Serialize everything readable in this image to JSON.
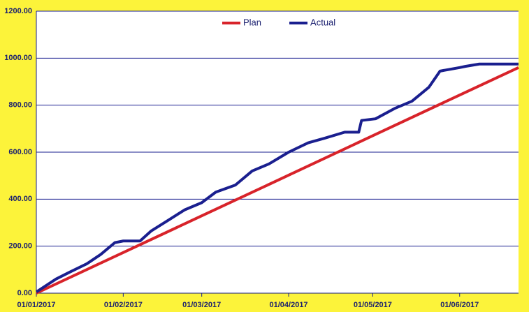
{
  "chart_data": {
    "type": "line",
    "x_format": "dd/mm/yyyy",
    "xlim": [
      "01/01/2017",
      "22/06/2017"
    ],
    "xticks": [
      "01/01/2017",
      "01/02/2017",
      "01/03/2017",
      "01/04/2017",
      "01/05/2017",
      "01/06/2017"
    ],
    "ylim": [
      0,
      1200
    ],
    "yticks": [
      {
        "value": 0,
        "label": "0.00"
      },
      {
        "value": 200,
        "label": "200.00"
      },
      {
        "value": 400,
        "label": "400.00"
      },
      {
        "value": 600,
        "label": "600.00"
      },
      {
        "value": 800,
        "label": "800.00"
      },
      {
        "value": 1000,
        "label": "1000.00"
      },
      {
        "value": 1200,
        "label": "1200.00"
      }
    ],
    "grid": true,
    "legend": "top",
    "series": [
      {
        "name": "Plan",
        "color": "#d8232a",
        "x": [
          "01/01/2017",
          "01/02/2017",
          "01/03/2017",
          "01/04/2017",
          "01/05/2017",
          "01/06/2017",
          "22/06/2017"
        ],
        "values": [
          0,
          173,
          329,
          502,
          670,
          843,
          960
        ]
      },
      {
        "name": "Actual",
        "color": "#1a1f8f",
        "x": [
          "01/01/2017",
          "08/01/2017",
          "13/01/2017",
          "19/01/2017",
          "24/01/2017",
          "29/01/2017",
          "01/02/2017",
          "07/02/2017",
          "11/02/2017",
          "17/02/2017",
          "23/02/2017",
          "01/03/2017",
          "06/03/2017",
          "13/03/2017",
          "19/03/2017",
          "25/03/2017",
          "01/04/2017",
          "08/04/2017",
          "14/04/2017",
          "21/04/2017",
          "26/04/2017",
          "27/04/2017",
          "02/05/2017",
          "09/05/2017",
          "15/05/2017",
          "21/05/2017",
          "25/05/2017",
          "01/06/2017",
          "03/06/2017",
          "08/06/2017",
          "22/06/2017"
        ],
        "values": [
          5,
          60,
          90,
          125,
          165,
          215,
          222,
          222,
          265,
          310,
          355,
          385,
          430,
          460,
          520,
          550,
          600,
          640,
          660,
          685,
          685,
          735,
          742,
          787,
          817,
          876,
          945,
          960,
          965,
          975,
          975
        ]
      }
    ]
  }
}
